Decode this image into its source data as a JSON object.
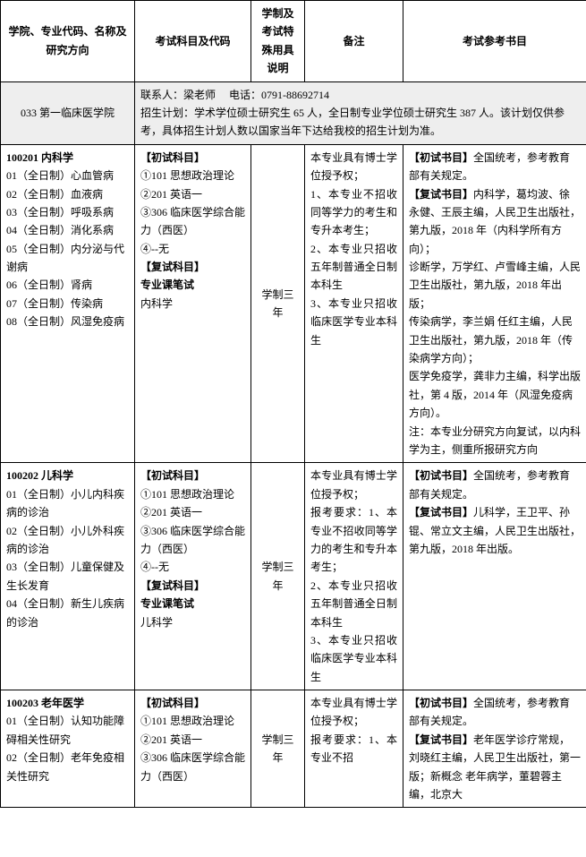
{
  "headers": {
    "col1": "学院、专业代码、名称及研究方向",
    "col2": "考试科目及代码",
    "col3": "学制及考试特殊用具说明",
    "col4": "备注",
    "col5": "考试参考书目"
  },
  "deptRow": {
    "deptCode": "033 第一临床医学院",
    "contactLabel": "联系人：梁老师",
    "phoneLabel": "电话：0791-88692714",
    "planText": "招生计划：学术学位硕士研究生 65 人，全日制专业学位硕士研究生 387 人。该计划仅供参考，具体招生计划人数以国家当年下达给我校的招生计划为准。"
  },
  "rows": [
    {
      "col1": {
        "title": "100201 内科学",
        "lines": [
          "01（全日制）心血管病",
          "02（全日制）血液病",
          "03（全日制）呼吸系病",
          "04（全日制）消化系病",
          "05（全日制）内分泌与代谢病",
          "06（全日制）肾病",
          "07（全日制）传染病",
          "08（全日制）风湿免疫病"
        ]
      },
      "col2": {
        "prelimHeader": "【初试科目】",
        "prelimLines": [
          "①101 思想政治理论",
          "②201 英语一",
          "③306 临床医学综合能力（西医）",
          "④--无"
        ],
        "retrialHeader": "【复试科目】",
        "retrialSub": "专业课笔试",
        "retrialSubject": "内科学"
      },
      "col3": "学制三年",
      "col4": "本专业具有博士学位授予权；\n1、本专业不招收同等学力的考生和专升本考生；\n2、本专业只招收五年制普通全日制本科生\n3、本专业只招收临床医学专业本科生",
      "col5": "【初试书目】全国统考，参考教育部有关规定。\n【复试书目】内科学，葛均波、徐永健、王辰主编，人民卫生出版社，第九版，2018 年（内科学所有方向）；\n诊断学，万学红、卢雪峰主编，人民卫生出版社，第九版，2018 年出版；\n传染病学，李兰娟 任红主编，人民卫生出版社，第九版，2018 年（传染病学方向）；\n医学免疫学，龚非力主编，科学出版社，第 4 版，2014 年（风湿免疫病方向）。\n注：本专业分研究方向复试，以内科学为主，侧重所报研究方向"
    },
    {
      "col1": {
        "title": "100202 儿科学",
        "lines": [
          "01（全日制）小儿内科疾病的诊治",
          "02（全日制）小儿外科疾病的诊治",
          "03（全日制）儿童保健及生长发育",
          "04（全日制）新生儿疾病的诊治"
        ]
      },
      "col2": {
        "prelimHeader": "【初试科目】",
        "prelimLines": [
          "①101 思想政治理论",
          "②201 英语一",
          "③306 临床医学综合能力（西医）",
          "④--无"
        ],
        "retrialHeader": "【复试科目】",
        "retrialSub": "专业课笔试",
        "retrialSubject": "儿科学"
      },
      "col3": "学制三年",
      "col4": "本专业具有博士学位授予权；\n报考要求：1、本专业不招收同等学力的考生和专升本考生；\n2、本专业只招收五年制普通全日制本科生\n3、本专业只招收临床医学专业本科生",
      "col5": "【初试书目】全国统考，参考教育部有关规定。\n【复试书目】儿科学，王卫平、孙锟、常立文主编，人民卫生出版社，第九版，2018 年出版。"
    },
    {
      "col1": {
        "title": "100203 老年医学",
        "lines": [
          "01（全日制）认知功能障碍相关性研究",
          "02（全日制）老年免疫相关性研究"
        ]
      },
      "col2": {
        "prelimHeader": "【初试科目】",
        "prelimLines": [
          "①101 思想政治理论",
          "②201 英语一",
          "③306 临床医学综合能力（西医）"
        ],
        "retrialHeader": "",
        "retrialSub": "",
        "retrialSubject": ""
      },
      "col3": "学制三年",
      "col4": "本专业具有博士学位授予权；\n报考要求：1、本专业不招",
      "col5": "【初试书目】全国统考，参考教育部有关规定。\n【复试书目】老年医学诊疗常规，刘晓红主编，人民卫生出版社，第一版；新概念 老年病学，董碧蓉主编，北京大"
    }
  ]
}
